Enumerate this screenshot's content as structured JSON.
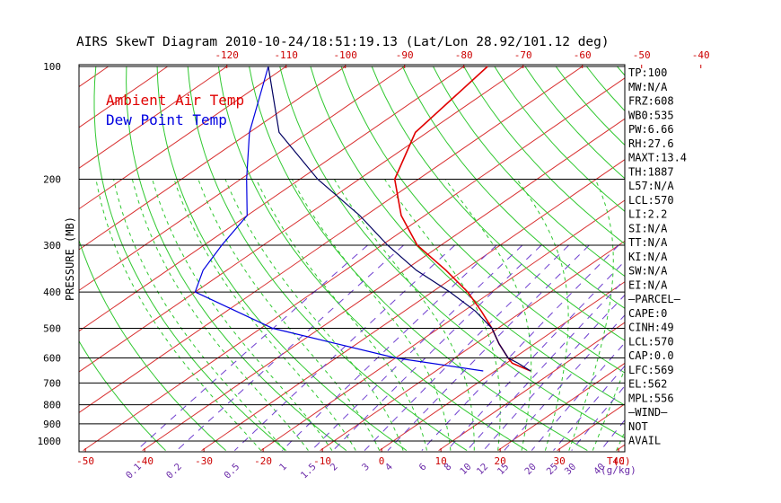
{
  "title": "AIRS SkewT Diagram 2010-10-24/18:51:19.13 (Lat/Lon 28.92/101.12 deg)",
  "legend": [
    {
      "label": "Ambient Air Temp",
      "color": "#e00000"
    },
    {
      "label": "Dew Point Temp",
      "color": "#0000e0"
    }
  ],
  "colors": {
    "isotherm": "#d83030",
    "dry_adiabat": "#30c830",
    "moist_adiabat": "#30c830",
    "mixing_ratio": "#7040d0",
    "isobar": "#000000",
    "temp_axis": "#cc0000",
    "mixing_axis": "#6a2aa8"
  },
  "chart_data": {
    "type": "line",
    "title": "AIRS SkewT Diagram 2010-10-24/18:51:19.13 (Lat/Lon 28.92/101.12 deg)",
    "ylabel": "PRESSURE (MB)",
    "xlabel": "T(C)",
    "y_scale": "log",
    "ylim": [
      1050,
      100
    ],
    "pressure_ticks": [
      100,
      200,
      300,
      400,
      500,
      600,
      700,
      800,
      900,
      1000
    ],
    "top_temp_ticks": [
      -120,
      -110,
      -100,
      -90,
      -80,
      -70,
      -60,
      -50,
      -40
    ],
    "bottom_temp_ticks": [
      -50,
      -40,
      -30,
      -20,
      -10,
      0,
      10,
      20,
      30,
      40
    ],
    "mixing_ratio_ticks": [
      "0.1",
      "0.2",
      "0.5",
      "1",
      "1.5",
      "2",
      "3",
      "4",
      "6",
      "8",
      "10",
      "12",
      "15",
      "20",
      "25",
      "30",
      "40"
    ],
    "mixing_ratio_unit": "(g/kg)",
    "series": [
      {
        "name": "Ambient Air Temp",
        "color": "#e00000",
        "points": [
          {
            "p": 100,
            "t": -76
          },
          {
            "p": 150,
            "t": -72
          },
          {
            "p": 200,
            "t": -64
          },
          {
            "p": 250,
            "t": -54
          },
          {
            "p": 300,
            "t": -44
          },
          {
            "p": 350,
            "t": -33
          },
          {
            "p": 400,
            "t": -24
          },
          {
            "p": 450,
            "t": -17
          },
          {
            "p": 500,
            "t": -11
          },
          {
            "p": 550,
            "t": -6
          },
          {
            "p": 600,
            "t": -1
          },
          {
            "p": 620,
            "t": 1
          },
          {
            "p": 650,
            "t": 6
          }
        ]
      },
      {
        "name": "Dew Point Temp",
        "color": "#0000e0",
        "points": [
          {
            "p": 100,
            "t": -113
          },
          {
            "p": 150,
            "t": -100
          },
          {
            "p": 200,
            "t": -89
          },
          {
            "p": 250,
            "t": -80
          },
          {
            "p": 300,
            "t": -77
          },
          {
            "p": 350,
            "t": -74
          },
          {
            "p": 400,
            "t": -70
          },
          {
            "p": 500,
            "t": -48
          },
          {
            "p": 600,
            "t": -20
          },
          {
            "p": 650,
            "t": -2
          }
        ]
      },
      {
        "name": "Parcel",
        "color": "#000060",
        "points": [
          {
            "p": 100,
            "t": -113
          },
          {
            "p": 150,
            "t": -95
          },
          {
            "p": 200,
            "t": -77
          },
          {
            "p": 250,
            "t": -61
          },
          {
            "p": 300,
            "t": -49
          },
          {
            "p": 350,
            "t": -38
          },
          {
            "p": 400,
            "t": -27
          },
          {
            "p": 450,
            "t": -18
          },
          {
            "p": 500,
            "t": -11
          },
          {
            "p": 550,
            "t": -6
          },
          {
            "p": 600,
            "t": -1
          },
          {
            "p": 620,
            "t": 2
          },
          {
            "p": 650,
            "t": 6
          }
        ]
      }
    ]
  },
  "indices": [
    "TP:100",
    "MW:N/A",
    "FRZ:608",
    "WB0:535",
    "PW:6.66",
    "RH:27.6",
    "MAXT:13.4",
    "TH:1887",
    "L57:N/A",
    "LCL:570",
    "LI:2.2",
    "SI:N/A",
    "TT:N/A",
    "KI:N/A",
    "SW:N/A",
    "EI:N/A",
    "—PARCEL—",
    "CAPE:0",
    "CINH:49",
    "LCL:570",
    "CAP:0.0",
    "LFC:569",
    "EL:562",
    "MPL:556",
    "—WIND—",
    "NOT",
    "AVAIL"
  ]
}
